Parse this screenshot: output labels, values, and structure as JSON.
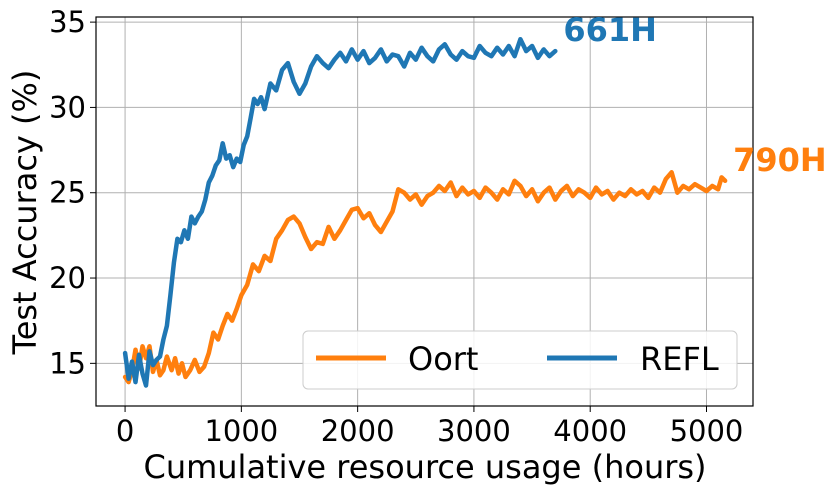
{
  "chart_data": {
    "type": "line",
    "xlabel": "Cumulative resource usage (hours)",
    "ylabel": "Test Accuracy (%)",
    "xlim": [
      -250,
      5400
    ],
    "ylim": [
      12.5,
      35.3
    ],
    "xticks": [
      0,
      1000,
      2000,
      3000,
      4000,
      5000
    ],
    "yticks": [
      15,
      20,
      25,
      30,
      35
    ],
    "grid": true,
    "legend": {
      "placement": "bottom-right",
      "columns": 2
    },
    "series": [
      {
        "name": "Oort",
        "color": "#ff7f0e",
        "end_label": "790H",
        "points": [
          [
            0,
            14.2
          ],
          [
            30,
            13.9
          ],
          [
            60,
            14.6
          ],
          [
            90,
            15.8
          ],
          [
            120,
            14.7
          ],
          [
            150,
            16.0
          ],
          [
            180,
            15.3
          ],
          [
            210,
            16.0
          ],
          [
            240,
            14.5
          ],
          [
            270,
            15.2
          ],
          [
            300,
            14.3
          ],
          [
            330,
            14.6
          ],
          [
            360,
            15.4
          ],
          [
            400,
            14.6
          ],
          [
            430,
            15.3
          ],
          [
            460,
            14.4
          ],
          [
            490,
            15.0
          ],
          [
            520,
            14.2
          ],
          [
            560,
            14.6
          ],
          [
            600,
            15.2
          ],
          [
            640,
            14.5
          ],
          [
            680,
            14.8
          ],
          [
            720,
            15.6
          ],
          [
            760,
            16.8
          ],
          [
            800,
            16.4
          ],
          [
            840,
            17.2
          ],
          [
            880,
            17.9
          ],
          [
            920,
            17.5
          ],
          [
            960,
            18.2
          ],
          [
            1000,
            19.0
          ],
          [
            1050,
            19.6
          ],
          [
            1100,
            20.8
          ],
          [
            1150,
            20.4
          ],
          [
            1200,
            21.3
          ],
          [
            1250,
            21.0
          ],
          [
            1300,
            22.3
          ],
          [
            1350,
            22.8
          ],
          [
            1400,
            23.4
          ],
          [
            1450,
            23.6
          ],
          [
            1500,
            23.2
          ],
          [
            1550,
            22.4
          ],
          [
            1600,
            21.7
          ],
          [
            1650,
            22.1
          ],
          [
            1700,
            22.0
          ],
          [
            1750,
            23.0
          ],
          [
            1800,
            22.3
          ],
          [
            1850,
            22.8
          ],
          [
            1900,
            23.4
          ],
          [
            1950,
            24.0
          ],
          [
            2000,
            24.1
          ],
          [
            2050,
            23.5
          ],
          [
            2100,
            23.8
          ],
          [
            2150,
            23.1
          ],
          [
            2200,
            22.7
          ],
          [
            2250,
            23.3
          ],
          [
            2300,
            23.9
          ],
          [
            2350,
            25.2
          ],
          [
            2400,
            25.0
          ],
          [
            2450,
            24.6
          ],
          [
            2500,
            24.9
          ],
          [
            2550,
            24.3
          ],
          [
            2600,
            24.8
          ],
          [
            2650,
            25.0
          ],
          [
            2700,
            25.4
          ],
          [
            2750,
            25.1
          ],
          [
            2800,
            25.6
          ],
          [
            2850,
            24.8
          ],
          [
            2900,
            25.3
          ],
          [
            2950,
            24.9
          ],
          [
            3000,
            25.1
          ],
          [
            3050,
            24.7
          ],
          [
            3100,
            25.3
          ],
          [
            3150,
            25.0
          ],
          [
            3200,
            24.6
          ],
          [
            3250,
            25.2
          ],
          [
            3300,
            24.9
          ],
          [
            3350,
            25.7
          ],
          [
            3400,
            25.4
          ],
          [
            3450,
            24.8
          ],
          [
            3500,
            25.2
          ],
          [
            3550,
            24.5
          ],
          [
            3600,
            25.0
          ],
          [
            3650,
            25.3
          ],
          [
            3700,
            24.6
          ],
          [
            3750,
            25.1
          ],
          [
            3800,
            25.4
          ],
          [
            3850,
            24.8
          ],
          [
            3900,
            25.2
          ],
          [
            3950,
            25.0
          ],
          [
            4000,
            24.7
          ],
          [
            4050,
            25.3
          ],
          [
            4100,
            24.9
          ],
          [
            4150,
            25.1
          ],
          [
            4200,
            24.6
          ],
          [
            4250,
            25.0
          ],
          [
            4300,
            24.8
          ],
          [
            4350,
            25.2
          ],
          [
            4400,
            24.9
          ],
          [
            4450,
            25.1
          ],
          [
            4500,
            24.7
          ],
          [
            4550,
            25.3
          ],
          [
            4600,
            25.0
          ],
          [
            4650,
            25.8
          ],
          [
            4700,
            26.2
          ],
          [
            4750,
            25.0
          ],
          [
            4800,
            25.4
          ],
          [
            4850,
            25.2
          ],
          [
            4900,
            25.5
          ],
          [
            4950,
            25.3
          ],
          [
            5000,
            25.1
          ],
          [
            5050,
            25.4
          ],
          [
            5100,
            25.2
          ],
          [
            5130,
            25.9
          ],
          [
            5160,
            25.7
          ]
        ]
      },
      {
        "name": "REFL",
        "color": "#1f77b4",
        "end_label": "661H",
        "points": [
          [
            0,
            15.6
          ],
          [
            30,
            14.1
          ],
          [
            60,
            15.1
          ],
          [
            90,
            13.9
          ],
          [
            120,
            15.5
          ],
          [
            150,
            14.4
          ],
          [
            180,
            13.7
          ],
          [
            210,
            15.7
          ],
          [
            240,
            14.9
          ],
          [
            270,
            15.2
          ],
          [
            300,
            15.4
          ],
          [
            330,
            16.4
          ],
          [
            360,
            17.2
          ],
          [
            390,
            19.0
          ],
          [
            420,
            20.9
          ],
          [
            450,
            22.3
          ],
          [
            480,
            22.1
          ],
          [
            510,
            22.8
          ],
          [
            540,
            22.3
          ],
          [
            570,
            23.6
          ],
          [
            600,
            23.2
          ],
          [
            630,
            23.6
          ],
          [
            660,
            23.9
          ],
          [
            690,
            24.6
          ],
          [
            720,
            25.6
          ],
          [
            750,
            26.0
          ],
          [
            780,
            26.6
          ],
          [
            810,
            26.9
          ],
          [
            840,
            27.9
          ],
          [
            870,
            27.0
          ],
          [
            900,
            27.2
          ],
          [
            930,
            26.5
          ],
          [
            960,
            27.0
          ],
          [
            990,
            26.8
          ],
          [
            1020,
            27.8
          ],
          [
            1050,
            28.3
          ],
          [
            1080,
            29.4
          ],
          [
            1110,
            30.5
          ],
          [
            1140,
            30.2
          ],
          [
            1170,
            30.6
          ],
          [
            1200,
            29.9
          ],
          [
            1250,
            31.4
          ],
          [
            1300,
            31.0
          ],
          [
            1350,
            32.2
          ],
          [
            1400,
            32.6
          ],
          [
            1450,
            31.5
          ],
          [
            1500,
            30.8
          ],
          [
            1550,
            31.4
          ],
          [
            1600,
            32.4
          ],
          [
            1650,
            33.0
          ],
          [
            1700,
            32.6
          ],
          [
            1750,
            32.3
          ],
          [
            1800,
            32.8
          ],
          [
            1850,
            33.2
          ],
          [
            1900,
            32.7
          ],
          [
            1950,
            33.4
          ],
          [
            2000,
            32.8
          ],
          [
            2050,
            33.3
          ],
          [
            2100,
            32.6
          ],
          [
            2150,
            32.9
          ],
          [
            2200,
            33.4
          ],
          [
            2250,
            32.7
          ],
          [
            2300,
            33.1
          ],
          [
            2350,
            33.0
          ],
          [
            2400,
            32.4
          ],
          [
            2450,
            33.2
          ],
          [
            2500,
            32.8
          ],
          [
            2550,
            33.5
          ],
          [
            2600,
            33.0
          ],
          [
            2650,
            32.7
          ],
          [
            2700,
            33.4
          ],
          [
            2750,
            33.7
          ],
          [
            2800,
            33.1
          ],
          [
            2850,
            32.8
          ],
          [
            2900,
            33.3
          ],
          [
            2950,
            33.0
          ],
          [
            3000,
            32.9
          ],
          [
            3050,
            33.6
          ],
          [
            3100,
            33.2
          ],
          [
            3150,
            33.0
          ],
          [
            3200,
            33.5
          ],
          [
            3250,
            33.1
          ],
          [
            3300,
            33.6
          ],
          [
            3350,
            33.0
          ],
          [
            3400,
            34.0
          ],
          [
            3450,
            33.3
          ],
          [
            3500,
            33.6
          ],
          [
            3550,
            32.9
          ],
          [
            3600,
            33.4
          ],
          [
            3650,
            33.0
          ],
          [
            3700,
            33.3
          ]
        ]
      }
    ]
  }
}
